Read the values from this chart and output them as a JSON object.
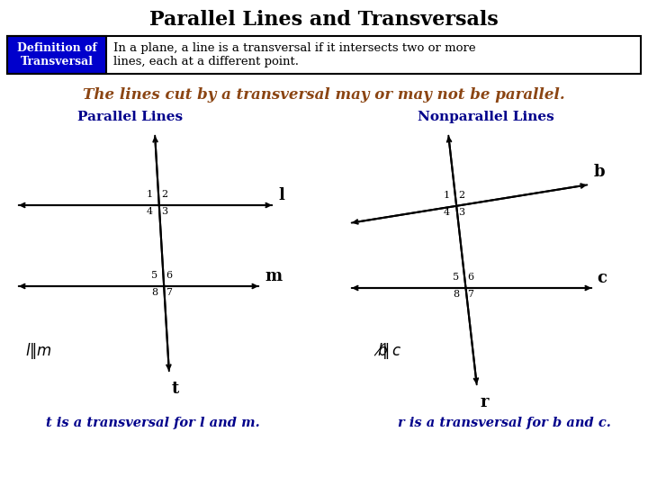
{
  "title": "Parallel Lines and Transversals",
  "title_fontsize": 16,
  "title_color": "#000000",
  "title_font": "serif",
  "bg_color": "#ffffff",
  "box_bg": "#0000cc",
  "box_text_color": "#ffffff",
  "box_label": "Definition of\nTransversal",
  "box_definition": "In a plane, a line is a transversal if it intersects two or more\nlines, each at a different point.",
  "italic_text": "The lines cut by a transversal may or may not be parallel.",
  "italic_color": "#8B4513",
  "section_left_title": "Parallel Lines",
  "section_right_title": "Nonparallel Lines",
  "section_title_color": "#00008B",
  "bottom_left": "t is a transversal for l and m.",
  "bottom_right": "r is a transversal for b and c.",
  "bottom_color": "#00008B",
  "line_color": "#000000"
}
